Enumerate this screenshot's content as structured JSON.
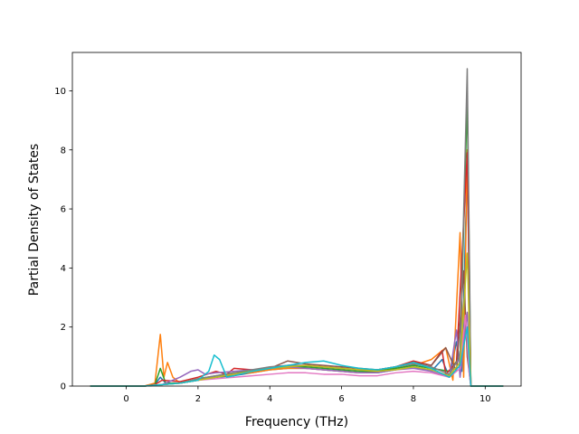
{
  "chart_data": {
    "type": "line",
    "title": "",
    "xlabel": "Frequency (THz)",
    "ylabel": "Partial Density of States",
    "xlim": [
      -1.5,
      11.0
    ],
    "ylim": [
      0,
      11.3
    ],
    "x_ticks": [
      0,
      2,
      4,
      6,
      8,
      10
    ],
    "y_ticks": [
      0,
      2,
      4,
      6,
      8,
      10
    ],
    "grid": false,
    "legend": "none",
    "series_colors": [
      "#1f77b4",
      "#ff7f0e",
      "#2ca02c",
      "#d62728",
      "#9467bd",
      "#8c564b",
      "#e377c2",
      "#7f7f7f",
      "#bcbd22",
      "#17becf"
    ],
    "series": [
      {
        "x": [
          -1.0,
          0.5,
          0.8,
          0.95,
          1.1,
          1.5,
          2.0,
          2.5,
          3.0,
          3.5,
          4.0,
          4.5,
          5.0,
          5.5,
          6.0,
          6.5,
          7.0,
          7.5,
          8.0,
          8.5,
          8.8,
          9.0,
          9.2,
          9.35,
          9.5,
          9.6,
          10.5
        ],
        "y": [
          0,
          0,
          0.05,
          0.3,
          0.1,
          0.1,
          0.2,
          0.3,
          0.35,
          0.45,
          0.55,
          0.6,
          0.6,
          0.55,
          0.5,
          0.45,
          0.45,
          0.55,
          0.65,
          0.5,
          0.9,
          0.3,
          1.5,
          0.5,
          7.5,
          0,
          0
        ]
      },
      {
        "x": [
          -1.0,
          0.5,
          0.8,
          0.95,
          1.05,
          1.15,
          1.3,
          1.5,
          2.0,
          2.5,
          3.0,
          3.5,
          4.0,
          4.5,
          5.0,
          5.5,
          6.0,
          6.5,
          7.0,
          7.5,
          8.0,
          8.5,
          8.9,
          9.1,
          9.3,
          9.4,
          9.5,
          9.6,
          10.5
        ],
        "y": [
          0,
          0,
          0.1,
          1.75,
          0.3,
          0.8,
          0.3,
          0.1,
          0.2,
          0.3,
          0.4,
          0.45,
          0.55,
          0.6,
          0.6,
          0.55,
          0.5,
          0.45,
          0.5,
          0.6,
          0.7,
          0.9,
          1.3,
          0.2,
          5.2,
          0.3,
          8.0,
          0,
          0
        ]
      },
      {
        "x": [
          -1.0,
          0.5,
          0.8,
          0.95,
          1.1,
          1.5,
          2.0,
          2.5,
          3.0,
          3.5,
          4.0,
          4.5,
          5.0,
          5.5,
          6.0,
          6.5,
          7.0,
          7.5,
          8.0,
          8.5,
          9.0,
          9.3,
          9.5,
          9.6,
          10.5
        ],
        "y": [
          0,
          0,
          0.05,
          0.6,
          0.1,
          0.1,
          0.25,
          0.35,
          0.45,
          0.5,
          0.6,
          0.65,
          0.65,
          0.6,
          0.55,
          0.5,
          0.5,
          0.6,
          0.7,
          0.6,
          0.5,
          1.0,
          9.7,
          0,
          0
        ]
      },
      {
        "x": [
          -1.0,
          0.5,
          0.8,
          1.0,
          1.5,
          2.0,
          2.5,
          2.8,
          3.0,
          3.5,
          4.0,
          4.5,
          5.0,
          5.5,
          6.0,
          6.5,
          7.0,
          7.5,
          8.0,
          8.5,
          8.8,
          8.9,
          9.2,
          9.5,
          9.6,
          10.5
        ],
        "y": [
          0,
          0,
          0.05,
          0.2,
          0.15,
          0.3,
          0.5,
          0.4,
          0.6,
          0.55,
          0.6,
          0.7,
          0.7,
          0.65,
          0.6,
          0.55,
          0.55,
          0.65,
          0.85,
          0.7,
          1.2,
          0.4,
          0.8,
          7.9,
          0,
          0
        ]
      },
      {
        "x": [
          -1.0,
          0.5,
          1.0,
          1.5,
          1.8,
          2.0,
          2.2,
          2.5,
          3.0,
          3.5,
          4.0,
          4.5,
          5.0,
          5.5,
          6.0,
          6.5,
          7.0,
          7.5,
          8.0,
          8.5,
          9.0,
          9.2,
          9.3,
          9.5,
          9.6,
          10.5
        ],
        "y": [
          0,
          0,
          0.05,
          0.3,
          0.5,
          0.55,
          0.4,
          0.45,
          0.5,
          0.55,
          0.6,
          0.65,
          0.6,
          0.55,
          0.5,
          0.45,
          0.45,
          0.55,
          0.6,
          0.5,
          0.3,
          1.9,
          0.3,
          2.5,
          0,
          0
        ]
      },
      {
        "x": [
          -1.0,
          0.5,
          1.0,
          1.5,
          2.0,
          2.5,
          3.0,
          3.5,
          4.0,
          4.5,
          5.0,
          5.5,
          6.0,
          6.5,
          7.0,
          7.5,
          8.0,
          8.5,
          8.9,
          9.2,
          9.4,
          9.5,
          9.6,
          10.5
        ],
        "y": [
          0,
          0,
          0.05,
          0.1,
          0.2,
          0.3,
          0.4,
          0.5,
          0.6,
          0.85,
          0.75,
          0.7,
          0.65,
          0.6,
          0.55,
          0.65,
          0.8,
          0.7,
          1.3,
          0.5,
          3.9,
          1.0,
          0,
          0
        ]
      },
      {
        "x": [
          -1.0,
          0.5,
          1.0,
          1.5,
          2.0,
          2.5,
          3.0,
          3.5,
          4.0,
          4.5,
          5.0,
          5.5,
          6.0,
          6.5,
          7.0,
          7.5,
          8.0,
          8.5,
          9.0,
          9.3,
          9.45,
          9.55,
          9.6,
          10.5
        ],
        "y": [
          0,
          0,
          0.05,
          0.1,
          0.2,
          0.25,
          0.3,
          0.35,
          0.4,
          0.45,
          0.45,
          0.4,
          0.4,
          0.35,
          0.35,
          0.45,
          0.5,
          0.45,
          0.3,
          0.6,
          2.4,
          0.5,
          0,
          0
        ]
      },
      {
        "x": [
          -1.0,
          0.5,
          1.0,
          1.5,
          2.0,
          2.5,
          3.0,
          3.5,
          4.0,
          4.5,
          5.0,
          5.5,
          6.0,
          6.5,
          7.0,
          7.5,
          8.0,
          8.5,
          9.0,
          9.3,
          9.5,
          9.6,
          10.5
        ],
        "y": [
          0,
          0,
          0.05,
          0.1,
          0.25,
          0.35,
          0.45,
          0.55,
          0.65,
          0.7,
          0.7,
          0.65,
          0.6,
          0.55,
          0.55,
          0.65,
          0.75,
          0.65,
          0.4,
          1.0,
          10.75,
          0,
          0
        ]
      },
      {
        "x": [
          -1.0,
          0.5,
          1.0,
          1.5,
          2.0,
          2.5,
          3.0,
          3.5,
          4.0,
          4.5,
          5.0,
          5.5,
          6.0,
          6.5,
          7.0,
          7.5,
          8.0,
          8.5,
          9.0,
          9.3,
          9.5,
          9.6,
          10.5
        ],
        "y": [
          0,
          0,
          0.05,
          0.1,
          0.2,
          0.3,
          0.4,
          0.5,
          0.6,
          0.65,
          0.7,
          0.65,
          0.6,
          0.55,
          0.5,
          0.55,
          0.65,
          0.55,
          0.35,
          0.8,
          4.5,
          0,
          0
        ]
      },
      {
        "x": [
          -1.0,
          0.5,
          1.0,
          1.5,
          2.0,
          2.3,
          2.45,
          2.6,
          2.8,
          3.0,
          3.5,
          4.0,
          4.5,
          5.0,
          5.5,
          6.0,
          6.5,
          7.0,
          7.5,
          8.0,
          8.5,
          9.0,
          9.3,
          9.5,
          9.6,
          10.5
        ],
        "y": [
          0,
          0,
          0.05,
          0.1,
          0.2,
          0.5,
          1.05,
          0.9,
          0.3,
          0.35,
          0.5,
          0.6,
          0.7,
          0.8,
          0.85,
          0.7,
          0.6,
          0.55,
          0.65,
          0.8,
          0.6,
          0.3,
          0.7,
          2.0,
          0,
          0
        ]
      }
    ]
  }
}
